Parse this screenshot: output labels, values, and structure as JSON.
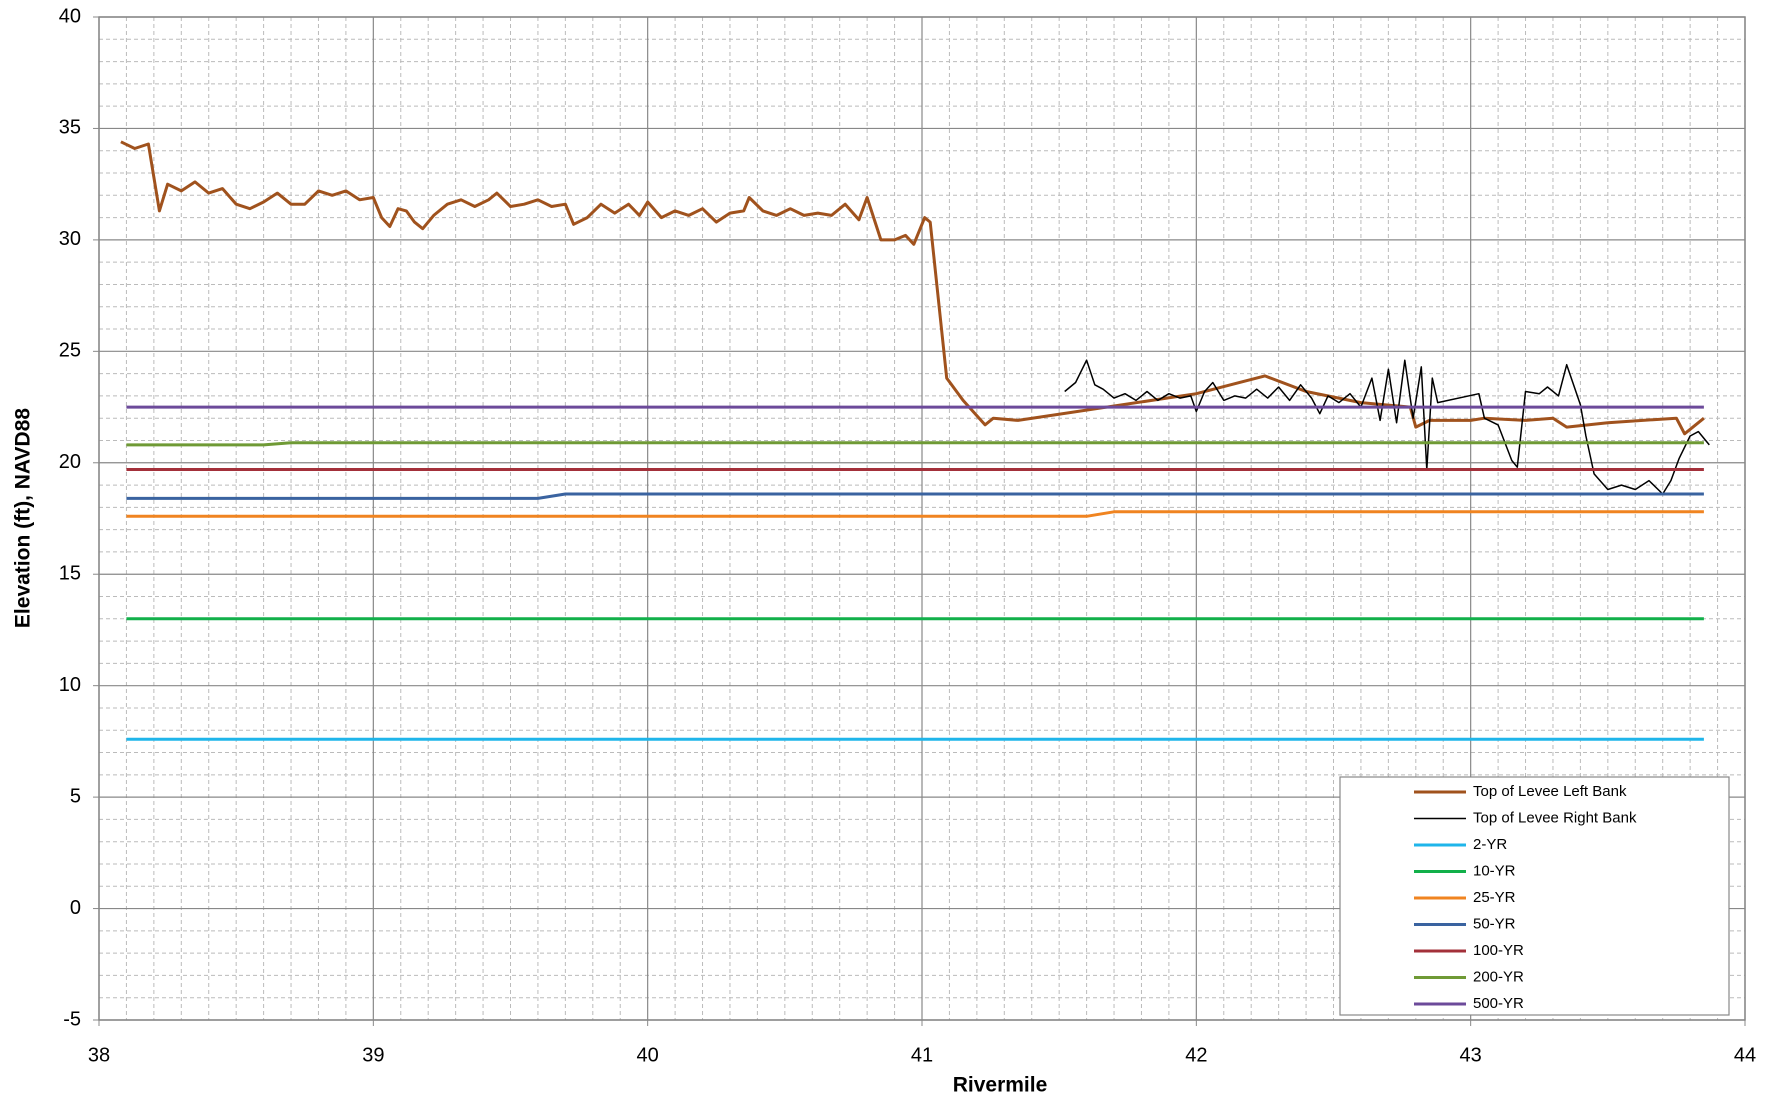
{
  "chart_data": {
    "type": "line",
    "x_label": "Rivermile",
    "y_label": "Elevation (ft), NAVD88",
    "xlim": [
      38,
      44
    ],
    "xticks": [
      38,
      39,
      40,
      41,
      42,
      43,
      44
    ],
    "ylim": [
      -5,
      40
    ],
    "yticks": [
      -5,
      0,
      5,
      10,
      15,
      20,
      25,
      30,
      35,
      40
    ],
    "grid": true,
    "minor_grid": true,
    "legend": "lower right",
    "series": [
      {
        "name": "Top of Levee Left Bank",
        "color": "#a0521d",
        "width": 3,
        "x": [
          38.08,
          38.13,
          38.18,
          38.22,
          38.25,
          38.3,
          38.35,
          38.4,
          38.45,
          38.5,
          38.55,
          38.6,
          38.65,
          38.7,
          38.75,
          38.8,
          38.85,
          38.9,
          38.95,
          39.0,
          39.03,
          39.06,
          39.09,
          39.12,
          39.15,
          39.18,
          39.22,
          39.27,
          39.32,
          39.37,
          39.42,
          39.45,
          39.5,
          39.55,
          39.6,
          39.65,
          39.7,
          39.73,
          39.78,
          39.83,
          39.88,
          39.93,
          39.97,
          40.0,
          40.05,
          40.1,
          40.15,
          40.2,
          40.25,
          40.3,
          40.35,
          40.37,
          40.42,
          40.47,
          40.52,
          40.57,
          40.62,
          40.67,
          40.72,
          40.77,
          40.8,
          40.85,
          40.9,
          40.94,
          40.97,
          41.01,
          41.03,
          41.09,
          41.15,
          41.23,
          41.26,
          41.35,
          42.0,
          42.25,
          42.4,
          42.6,
          42.78,
          42.8,
          42.85,
          43.0,
          43.05,
          43.2,
          43.3,
          43.35,
          43.5,
          43.75,
          43.78,
          43.85
        ],
        "values": [
          34.4,
          34.1,
          34.3,
          31.3,
          32.5,
          32.2,
          32.6,
          32.1,
          32.3,
          31.6,
          31.4,
          31.7,
          32.1,
          31.6,
          31.6,
          32.2,
          32.0,
          32.2,
          31.8,
          31.9,
          31.0,
          30.6,
          31.4,
          31.3,
          30.8,
          30.5,
          31.1,
          31.6,
          31.8,
          31.5,
          31.8,
          32.1,
          31.5,
          31.6,
          31.8,
          31.5,
          31.6,
          30.7,
          31.0,
          31.6,
          31.2,
          31.6,
          31.1,
          31.7,
          31.0,
          31.3,
          31.1,
          31.4,
          30.8,
          31.2,
          31.3,
          31.9,
          31.3,
          31.1,
          31.4,
          31.1,
          31.2,
          31.1,
          31.6,
          30.9,
          31.9,
          30.0,
          30.0,
          30.2,
          29.8,
          31.0,
          30.8,
          23.8,
          22.8,
          21.7,
          22.0,
          21.9,
          23.1,
          23.9,
          23.2,
          22.7,
          22.5,
          21.6,
          21.9,
          21.9,
          22.0,
          21.9,
          22.0,
          21.6,
          21.8,
          22.0,
          21.3,
          22.0
        ]
      },
      {
        "name": "Top of Levee Right Bank",
        "color": "#000000",
        "width": 1.5,
        "x": [
          41.52,
          41.56,
          41.6,
          41.63,
          41.66,
          41.7,
          41.74,
          41.78,
          41.82,
          41.86,
          41.9,
          41.94,
          41.98,
          42.0,
          42.03,
          42.06,
          42.1,
          42.14,
          42.18,
          42.22,
          42.26,
          42.3,
          42.34,
          42.38,
          42.42,
          42.45,
          42.48,
          42.52,
          42.56,
          42.6,
          42.64,
          42.67,
          42.7,
          42.73,
          42.76,
          42.79,
          42.82,
          42.84,
          42.86,
          42.88,
          43.03,
          43.05,
          43.1,
          43.15,
          43.17,
          43.2,
          43.25,
          43.28,
          43.32,
          43.35,
          43.4,
          43.42,
          43.45,
          43.5,
          43.55,
          43.6,
          43.65,
          43.7,
          43.73,
          43.76,
          43.8,
          43.83,
          43.87
        ],
        "values": [
          23.2,
          23.6,
          24.6,
          23.5,
          23.3,
          22.9,
          23.1,
          22.8,
          23.2,
          22.8,
          23.1,
          22.9,
          23.0,
          22.3,
          23.2,
          23.6,
          22.8,
          23.0,
          22.9,
          23.3,
          22.9,
          23.4,
          22.8,
          23.5,
          22.9,
          22.2,
          23.0,
          22.7,
          23.1,
          22.5,
          23.8,
          21.9,
          24.2,
          21.8,
          24.6,
          22.0,
          24.3,
          19.7,
          23.8,
          22.7,
          23.1,
          22.0,
          21.7,
          20.1,
          19.8,
          23.2,
          23.1,
          23.4,
          23.0,
          24.4,
          22.6,
          21.2,
          19.5,
          18.8,
          19.0,
          18.8,
          19.2,
          18.6,
          19.2,
          20.2,
          21.2,
          21.4,
          20.8
        ]
      },
      {
        "name": "2-YR",
        "color": "#1fb5ea",
        "width": 3,
        "x": [
          38.1,
          43.85
        ],
        "values": [
          7.6,
          7.6
        ]
      },
      {
        "name": "10-YR",
        "color": "#12b04a",
        "width": 3,
        "x": [
          38.1,
          43.85
        ],
        "values": [
          13.0,
          13.0
        ]
      },
      {
        "name": "25-YR",
        "color": "#f08420",
        "width": 3,
        "x": [
          38.1,
          41.6,
          41.7,
          43.85
        ],
        "values": [
          17.6,
          17.6,
          17.8,
          17.8
        ]
      },
      {
        "name": "50-YR",
        "color": "#3a63a0",
        "width": 3,
        "x": [
          38.1,
          39.6,
          39.7,
          43.85
        ],
        "values": [
          18.4,
          18.4,
          18.6,
          18.6
        ]
      },
      {
        "name": "100-YR",
        "color": "#a3303a",
        "width": 3,
        "x": [
          38.1,
          43.85
        ],
        "values": [
          19.7,
          19.7
        ]
      },
      {
        "name": "200-YR",
        "color": "#6f9a35",
        "width": 3,
        "x": [
          38.1,
          38.6,
          38.7,
          43.85
        ],
        "values": [
          20.8,
          20.8,
          20.9,
          20.9
        ]
      },
      {
        "name": "500-YR",
        "color": "#6c4a9a",
        "width": 3,
        "x": [
          38.1,
          43.85
        ],
        "values": [
          22.5,
          22.5
        ]
      }
    ]
  }
}
